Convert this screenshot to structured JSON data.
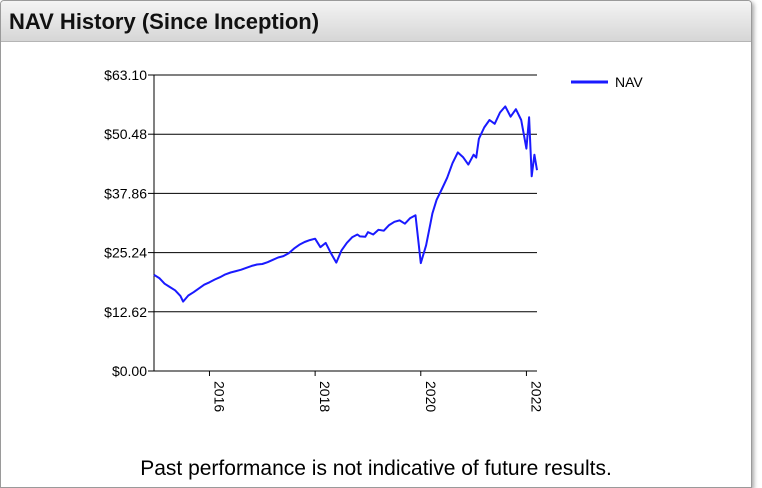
{
  "header": {
    "title": "NAV History (Since Inception)"
  },
  "footer": {
    "disclaimer": "Past performance is not indicative of future results."
  },
  "chart_data": {
    "type": "line",
    "title": "NAV History (Since Inception)",
    "xlabel": "",
    "ylabel": "",
    "y_ticks": [
      "$63.10",
      "$50.48",
      "$37.86",
      "$25.24",
      "$12.62",
      "$0.00"
    ],
    "y_tick_values": [
      63.1,
      50.48,
      37.86,
      25.24,
      12.62,
      0
    ],
    "ylim": [
      0,
      63.1
    ],
    "x_ticks": [
      "2016",
      "2018",
      "2020",
      "2022"
    ],
    "x_tick_values": [
      2016,
      2018,
      2020,
      2022
    ],
    "xlim": [
      2014.95,
      2022.2
    ],
    "grid": "horizontal",
    "legend_position": "right",
    "series": [
      {
        "name": "NAV",
        "color": "#1a1aff",
        "x": [
          2014.95,
          2015.05,
          2015.15,
          2015.25,
          2015.35,
          2015.45,
          2015.5,
          2015.6,
          2015.7,
          2015.8,
          2015.9,
          2016.0,
          2016.1,
          2016.2,
          2016.3,
          2016.4,
          2016.5,
          2016.6,
          2016.7,
          2016.8,
          2016.9,
          2017.0,
          2017.1,
          2017.2,
          2017.3,
          2017.4,
          2017.5,
          2017.6,
          2017.7,
          2017.8,
          2017.9,
          2018.0,
          2018.1,
          2018.2,
          2018.3,
          2018.4,
          2018.5,
          2018.6,
          2018.7,
          2018.8,
          2018.85,
          2018.95,
          2019.0,
          2019.1,
          2019.2,
          2019.3,
          2019.4,
          2019.5,
          2019.6,
          2019.7,
          2019.8,
          2019.9,
          2020.0,
          2020.1,
          2020.18,
          2020.22,
          2020.3,
          2020.4,
          2020.5,
          2020.6,
          2020.7,
          2020.8,
          2020.9,
          2021.0,
          2021.05,
          2021.1,
          2021.2,
          2021.3,
          2021.4,
          2021.5,
          2021.6,
          2021.7,
          2021.8,
          2021.9,
          2022.0,
          2022.05,
          2022.1,
          2022.15,
          2022.2
        ],
        "values": [
          20.5,
          19.8,
          18.6,
          17.9,
          17.2,
          16.0,
          14.8,
          16.1,
          16.8,
          17.6,
          18.4,
          18.9,
          19.5,
          20.0,
          20.6,
          21.0,
          21.3,
          21.6,
          22.0,
          22.4,
          22.7,
          22.8,
          23.2,
          23.7,
          24.2,
          24.5,
          25.1,
          26.1,
          26.9,
          27.5,
          27.9,
          28.2,
          26.4,
          27.3,
          25.1,
          23.1,
          25.7,
          27.3,
          28.5,
          29.1,
          28.7,
          28.6,
          29.6,
          29.1,
          30.1,
          29.9,
          31.1,
          31.8,
          32.1,
          31.4,
          32.6,
          33.2,
          23.0,
          26.8,
          31.3,
          33.6,
          36.5,
          38.8,
          41.2,
          44.3,
          46.6,
          45.6,
          44.0,
          46.1,
          45.5,
          49.5,
          51.9,
          53.5,
          52.7,
          55.1,
          56.4,
          54.2,
          55.8,
          53.5,
          47.4,
          54.1,
          41.5,
          46.1,
          42.8
        ]
      }
    ]
  }
}
